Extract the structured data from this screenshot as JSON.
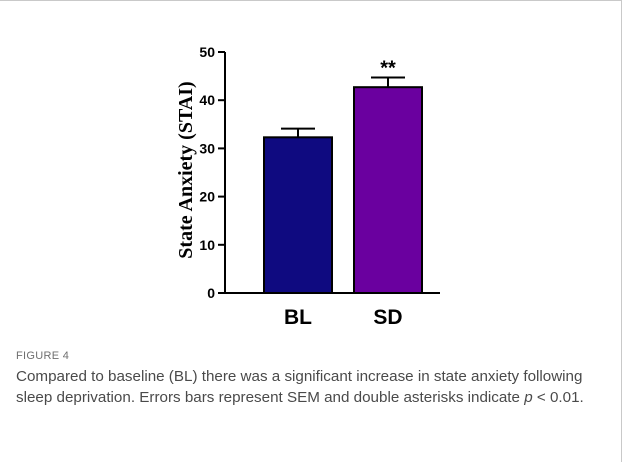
{
  "figure": {
    "label": "FIGURE 4",
    "caption_before": "Compared to baseline (BL) there was a significant increase in state anxiety following sleep deprivation. Errors bars represent SEM and double asterisks indicate ",
    "caption_italic": "p",
    "caption_after": " < 0.01."
  },
  "chart_data": {
    "type": "bar",
    "categories": [
      "BL",
      "SD"
    ],
    "values": [
      32.3,
      42.7
    ],
    "errors": [
      1.8,
      2.0
    ],
    "annotations": [
      "",
      "**"
    ],
    "colors": [
      "#0f0a80",
      "#6a009f"
    ],
    "ylabel": "State Anxiety (STAI)",
    "ylim": [
      0,
      50
    ],
    "yticks": [
      0,
      10,
      20,
      30,
      40,
      50
    ],
    "grid": false
  }
}
